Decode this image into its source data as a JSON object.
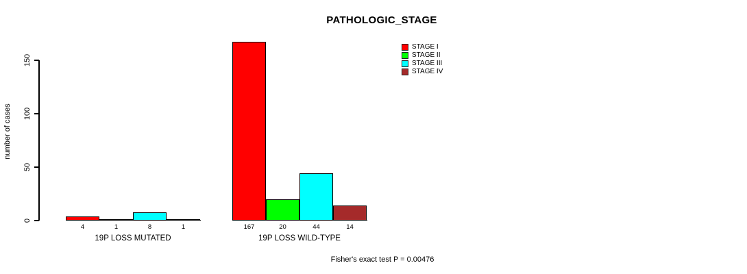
{
  "chart_data": {
    "type": "bar",
    "title": "PATHOLOGIC_STAGE",
    "xlabel": "",
    "ylabel": "number of cases",
    "ylim": [
      0,
      150
    ],
    "yticks": [
      0,
      50,
      100,
      150
    ],
    "grid": false,
    "legend_position": "top-right",
    "categories": [
      "19P LOSS MUTATED",
      "19P LOSS WILD-TYPE"
    ],
    "series": [
      {
        "name": "STAGE I",
        "color": "#FF0000",
        "values": [
          4,
          167
        ]
      },
      {
        "name": "STAGE II",
        "color": "#00FF00",
        "values": [
          1,
          20
        ]
      },
      {
        "name": "STAGE III",
        "color": "#00FFFF",
        "values": [
          8,
          44
        ]
      },
      {
        "name": "STAGE IV",
        "color": "#A52A2A",
        "values": [
          1,
          14
        ]
      }
    ],
    "value_labels_shown": true,
    "annotation": "Fisher's exact test P = 0.00476"
  }
}
